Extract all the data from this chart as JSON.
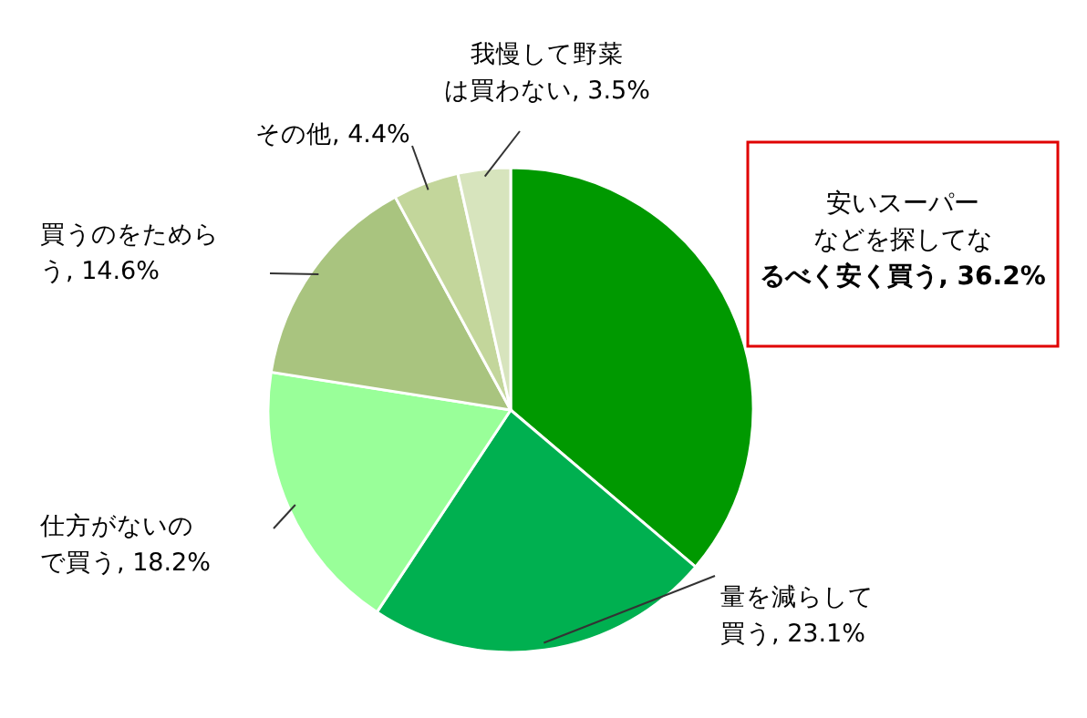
{
  "chart_data": {
    "type": "pie",
    "categories": [
      "安いスーパーなどを探してなるべく安く買う",
      "量を減らして買う",
      "仕方がないので買う",
      "買うのをためらう",
      "その他",
      "我慢して野菜は買わない"
    ],
    "value_labels": [
      "36.2%",
      "23.1%",
      "18.2%",
      "14.6%",
      "4.4%",
      "3.5%"
    ],
    "values": [
      36.2,
      23.1,
      18.2,
      14.6,
      4.4,
      3.5
    ],
    "colors": [
      "#009900",
      "#00b050",
      "#99ff99",
      "#a9c47f",
      "#c3d69b",
      "#d7e4bd"
    ],
    "data_labels": true
  }
}
